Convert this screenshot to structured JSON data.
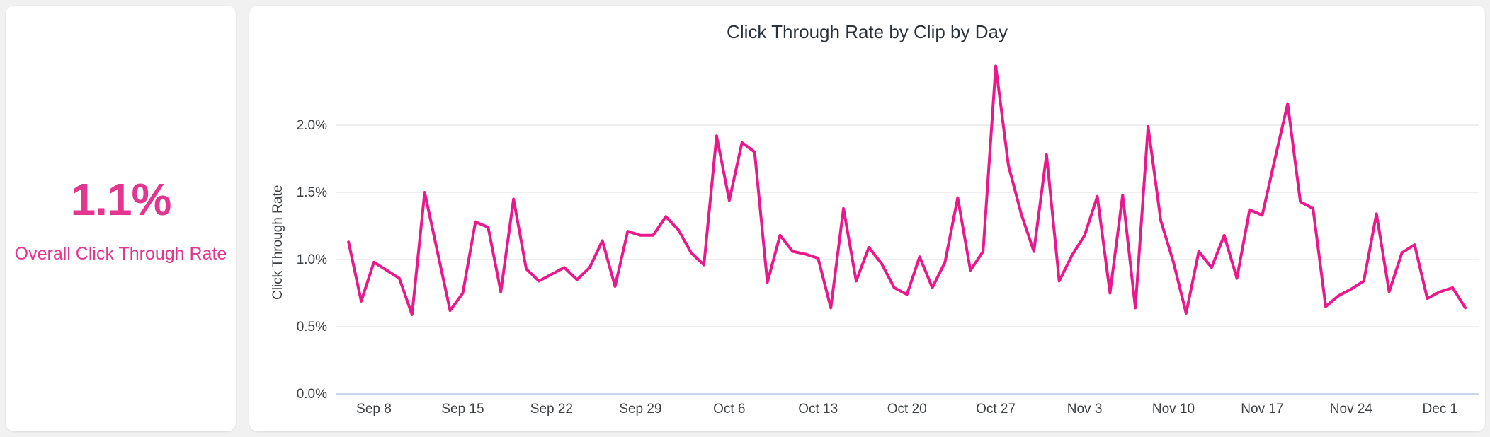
{
  "summary_card": {
    "value": "1.1%",
    "label": "Overall Click Through Rate"
  },
  "chart_card": {
    "title": "Click Through Rate by Clip by Day"
  },
  "colors": {
    "accent_pink_text": "#E23690",
    "line_pink": "#E9198C",
    "grid_light": "#E8E9EC",
    "axis_baseline": "#C9D5EC",
    "text_dark": "#3C4043",
    "title_dark": "#2A3139",
    "page_bg": "#F1F1F2",
    "card_bg": "#FFFFFF"
  },
  "chart_data": {
    "type": "line",
    "title": "Click Through Rate by Clip by Day",
    "xlabel": "",
    "ylabel": "Click Through Rate",
    "unit": "%",
    "grid": true,
    "legend": false,
    "ylim": [
      0,
      2.5
    ],
    "y_ticks": [
      "0.0%",
      "0.5%",
      "1.0%",
      "1.5%",
      "2.0%"
    ],
    "y_tick_values": [
      0,
      0.5,
      1.0,
      1.5,
      2.0
    ],
    "x_tick_labels": [
      "Sep 8",
      "Sep 15",
      "Sep 22",
      "Sep 29",
      "Oct 6",
      "Oct 13",
      "Oct 20",
      "Oct 27",
      "Nov 3",
      "Nov 10",
      "Nov 17",
      "Nov 24",
      "Dec 1"
    ],
    "x_tick_day_index": [
      2,
      9,
      16,
      23,
      30,
      37,
      44,
      51,
      58,
      65,
      72,
      79,
      86
    ],
    "dates": [
      "Sep 6",
      "Sep 7",
      "Sep 8",
      "Sep 9",
      "Sep 10",
      "Sep 11",
      "Sep 12",
      "Sep 13",
      "Sep 14",
      "Sep 15",
      "Sep 16",
      "Sep 17",
      "Sep 18",
      "Sep 19",
      "Sep 20",
      "Sep 21",
      "Sep 22",
      "Sep 23",
      "Sep 24",
      "Sep 25",
      "Sep 26",
      "Sep 27",
      "Sep 28",
      "Sep 29",
      "Sep 30",
      "Oct 1",
      "Oct 2",
      "Oct 3",
      "Oct 4",
      "Oct 5",
      "Oct 6",
      "Oct 7",
      "Oct 8",
      "Oct 9",
      "Oct 10",
      "Oct 11",
      "Oct 12",
      "Oct 13",
      "Oct 14",
      "Oct 15",
      "Oct 16",
      "Oct 17",
      "Oct 18",
      "Oct 19",
      "Oct 20",
      "Oct 21",
      "Oct 22",
      "Oct 23",
      "Oct 24",
      "Oct 25",
      "Oct 26",
      "Oct 27",
      "Oct 28",
      "Oct 29",
      "Oct 30",
      "Oct 31",
      "Nov 1",
      "Nov 2",
      "Nov 3",
      "Nov 4",
      "Nov 5",
      "Nov 6",
      "Nov 7",
      "Nov 8",
      "Nov 9",
      "Nov 10",
      "Nov 11",
      "Nov 12",
      "Nov 13",
      "Nov 14",
      "Nov 15",
      "Nov 16",
      "Nov 17",
      "Nov 18",
      "Nov 19",
      "Nov 20",
      "Nov 21",
      "Nov 22",
      "Nov 23",
      "Nov 24",
      "Nov 25",
      "Nov 26",
      "Nov 27",
      "Nov 28",
      "Nov 29",
      "Nov 30",
      "Dec 1",
      "Dec 2",
      "Dec 3"
    ],
    "values": [
      1.13,
      0.69,
      0.98,
      0.92,
      0.86,
      0.59,
      1.5,
      1.06,
      0.62,
      0.75,
      1.28,
      1.24,
      0.76,
      1.45,
      0.93,
      0.84,
      0.89,
      0.94,
      0.85,
      0.94,
      1.14,
      0.8,
      1.21,
      1.18,
      1.18,
      1.32,
      1.22,
      1.05,
      0.96,
      1.92,
      1.44,
      1.87,
      1.8,
      0.83,
      1.18,
      1.06,
      1.04,
      1.01,
      0.64,
      1.38,
      0.84,
      1.09,
      0.97,
      0.79,
      0.74,
      1.02,
      0.79,
      0.98,
      1.46,
      0.92,
      1.06,
      2.44,
      1.7,
      1.34,
      1.06,
      1.78,
      0.84,
      1.03,
      1.18,
      1.47,
      0.75,
      1.48,
      0.64,
      1.99,
      1.29,
      0.98,
      0.6,
      1.06,
      0.94,
      1.18,
      0.86,
      1.37,
      1.33,
      1.75,
      2.16,
      1.43,
      1.38,
      0.65,
      0.73,
      0.78,
      0.84,
      1.34,
      0.76,
      1.05,
      1.11,
      0.71,
      0.76,
      0.79,
      0.64
    ]
  }
}
